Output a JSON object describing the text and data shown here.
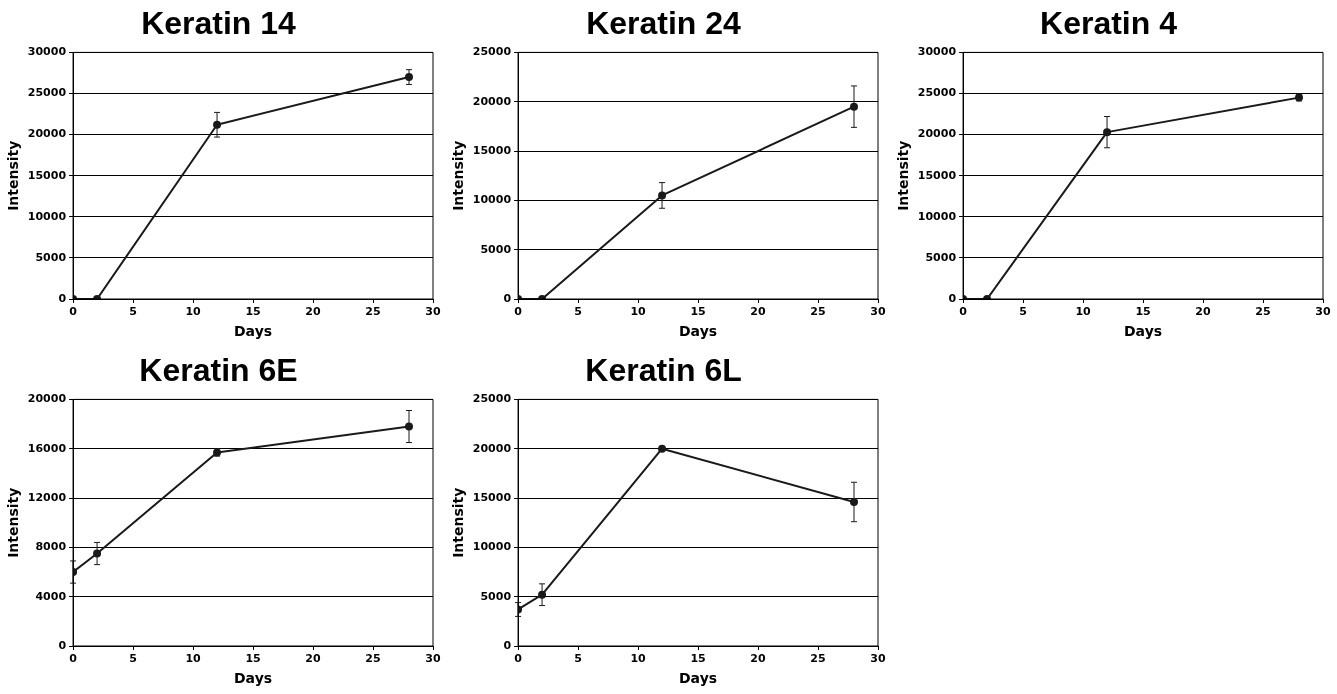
{
  "chart_data": [
    {
      "type": "line",
      "title": "Keratin 14",
      "xlabel": "Days",
      "ylabel": "Intensity",
      "xlim": [
        0,
        30
      ],
      "xticks": [
        0,
        5,
        10,
        15,
        20,
        25,
        30
      ],
      "ylim": [
        0,
        30000
      ],
      "yticks": [
        0,
        5000,
        10000,
        15000,
        20000,
        25000,
        30000
      ],
      "grid": "y",
      "marker": "circle",
      "line_style": "solid",
      "x": [
        0,
        2,
        12,
        28
      ],
      "series": [
        {
          "color": "#1a1a1a",
          "values": [
            0,
            0,
            21200,
            27000
          ],
          "errors": [
            null,
            null,
            1500,
            900
          ]
        }
      ]
    },
    {
      "type": "line",
      "title": "Keratin 24",
      "xlabel": "Days",
      "ylabel": "Intensity",
      "xlim": [
        0,
        30
      ],
      "xticks": [
        0,
        5,
        10,
        15,
        20,
        25,
        30
      ],
      "ylim": [
        0,
        25000
      ],
      "yticks": [
        0,
        5000,
        10000,
        15000,
        20000,
        25000
      ],
      "grid": "y",
      "marker": "circle",
      "line_style": "solid",
      "x": [
        0,
        2,
        12,
        28
      ],
      "series": [
        {
          "color": "#1a1a1a",
          "values": [
            0,
            0,
            10500,
            19500
          ],
          "errors": [
            null,
            null,
            1300,
            2100
          ]
        }
      ]
    },
    {
      "type": "line",
      "title": "Keratin 4",
      "xlabel": "Days",
      "ylabel": "Intensity",
      "xlim": [
        0,
        30
      ],
      "xticks": [
        0,
        5,
        10,
        15,
        20,
        25,
        30
      ],
      "ylim": [
        0,
        30000
      ],
      "yticks": [
        0,
        5000,
        10000,
        15000,
        20000,
        25000,
        30000
      ],
      "grid": "y",
      "marker": "circle",
      "line_style": "solid",
      "x": [
        0,
        2,
        12,
        28
      ],
      "series": [
        {
          "color": "#1a1a1a",
          "values": [
            0,
            0,
            20300,
            24500
          ],
          "errors": [
            null,
            null,
            1900,
            400
          ]
        }
      ]
    },
    {
      "type": "line",
      "title": "Keratin 6E",
      "xlabel": "Days",
      "ylabel": "Intensity",
      "xlim": [
        0,
        30
      ],
      "xticks": [
        0,
        5,
        10,
        15,
        20,
        25,
        30
      ],
      "ylim": [
        0,
        20000
      ],
      "yticks": [
        0,
        4000,
        8000,
        12000,
        16000,
        20000
      ],
      "grid": "y",
      "marker": "circle",
      "line_style": "solid",
      "x": [
        0,
        2,
        12,
        28
      ],
      "series": [
        {
          "color": "#1a1a1a",
          "values": [
            6000,
            7500,
            15700,
            17800
          ],
          "errors": [
            900,
            900,
            300,
            1300
          ]
        }
      ]
    },
    {
      "type": "line",
      "title": "Keratin 6L",
      "xlabel": "Days",
      "ylabel": "Intensity",
      "xlim": [
        0,
        30
      ],
      "xticks": [
        0,
        5,
        10,
        15,
        20,
        25,
        30
      ],
      "ylim": [
        0,
        25000
      ],
      "yticks": [
        0,
        5000,
        10000,
        15000,
        20000,
        25000
      ],
      "grid": "y",
      "marker": "circle",
      "line_style": "solid",
      "x": [
        0,
        2,
        12,
        28
      ],
      "series": [
        {
          "color": "#1a1a1a",
          "values": [
            3700,
            5200,
            20000,
            14600
          ],
          "errors": [
            700,
            1100,
            null,
            2000
          ]
        }
      ]
    }
  ]
}
